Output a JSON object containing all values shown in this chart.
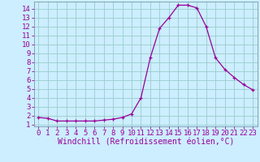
{
  "x": [
    0,
    1,
    2,
    3,
    4,
    5,
    6,
    7,
    8,
    9,
    10,
    11,
    12,
    13,
    14,
    15,
    16,
    17,
    18,
    19,
    20,
    21,
    22,
    23
  ],
  "y": [
    1.8,
    1.7,
    1.4,
    1.4,
    1.4,
    1.4,
    1.4,
    1.5,
    1.6,
    1.8,
    2.2,
    4.0,
    8.5,
    11.8,
    13.0,
    14.4,
    14.4,
    14.1,
    12.0,
    8.5,
    7.2,
    6.3,
    5.5,
    4.9
  ],
  "line_color": "#990099",
  "marker": "+",
  "bg_color": "#cceeff",
  "grid_color": "#99cccc",
  "xlabel": "Windchill (Refroidissement éolien,°C)",
  "xlim": [
    -0.5,
    23.5
  ],
  "ylim": [
    0.8,
    14.8
  ],
  "xticks": [
    0,
    1,
    2,
    3,
    4,
    5,
    6,
    7,
    8,
    9,
    10,
    11,
    12,
    13,
    14,
    15,
    16,
    17,
    18,
    19,
    20,
    21,
    22,
    23
  ],
  "yticks": [
    1,
    2,
    3,
    4,
    5,
    6,
    7,
    8,
    9,
    10,
    11,
    12,
    13,
    14
  ],
  "tick_fontsize": 6.5,
  "xlabel_fontsize": 7,
  "marker_size": 3.5,
  "line_width": 0.9,
  "spine_color": "#7799aa"
}
